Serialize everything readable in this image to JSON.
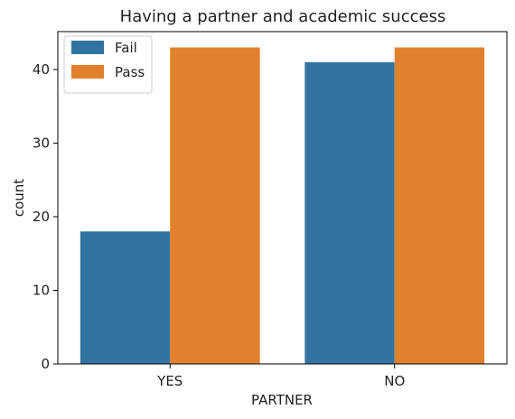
{
  "chart_data": {
    "type": "bar",
    "title": "Having a partner and academic success",
    "xlabel": "PARTNER",
    "ylabel": "count",
    "categories": [
      "YES",
      "NO"
    ],
    "series": [
      {
        "name": "Fail",
        "values": [
          18,
          41
        ],
        "color": "#3274a1"
      },
      {
        "name": "Pass",
        "values": [
          43,
          43
        ],
        "color": "#e1812c"
      }
    ],
    "ylim": [
      0,
      45.15
    ],
    "yticks": [
      0,
      10,
      20,
      30,
      40
    ],
    "grid": false,
    "legend_position": "top-left"
  }
}
